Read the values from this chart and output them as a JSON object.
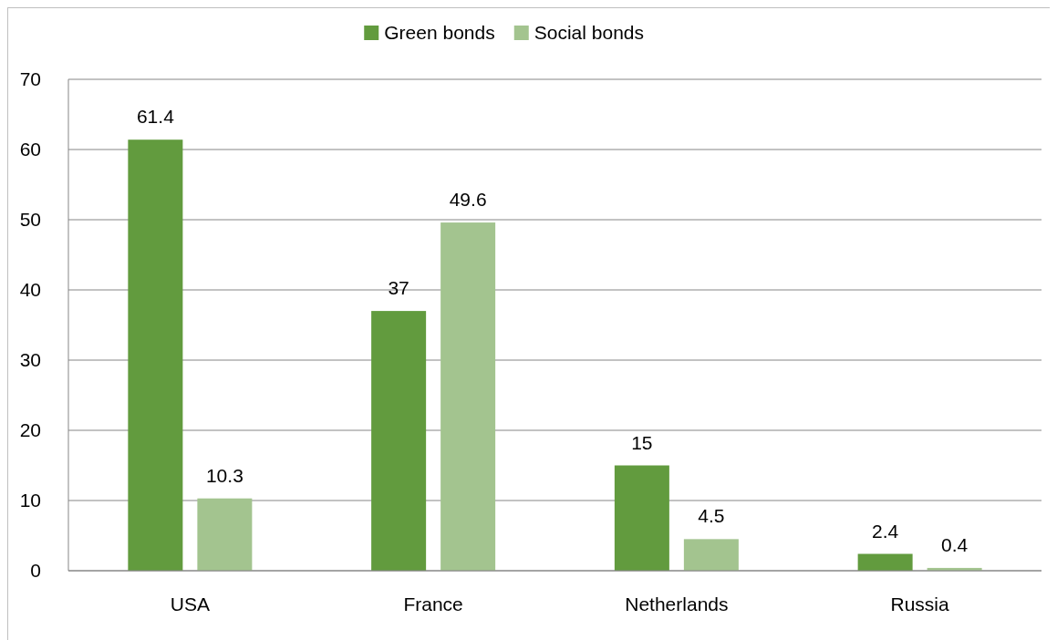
{
  "chart_data": {
    "type": "bar",
    "categories": [
      "USA",
      "France",
      "Netherlands",
      "Russia"
    ],
    "series": [
      {
        "name": "Green bonds",
        "color": "#629b3e",
        "values": [
          61.4,
          37,
          15,
          2.4
        ]
      },
      {
        "name": "Social bonds",
        "color": "#a3c48f",
        "values": [
          10.3,
          49.6,
          4.5,
          0.4
        ]
      }
    ],
    "ylim": [
      0,
      70
    ],
    "yticks": [
      0,
      10,
      20,
      30,
      40,
      50,
      60,
      70
    ],
    "grid": "y",
    "legend": "top",
    "data_labels": true
  }
}
